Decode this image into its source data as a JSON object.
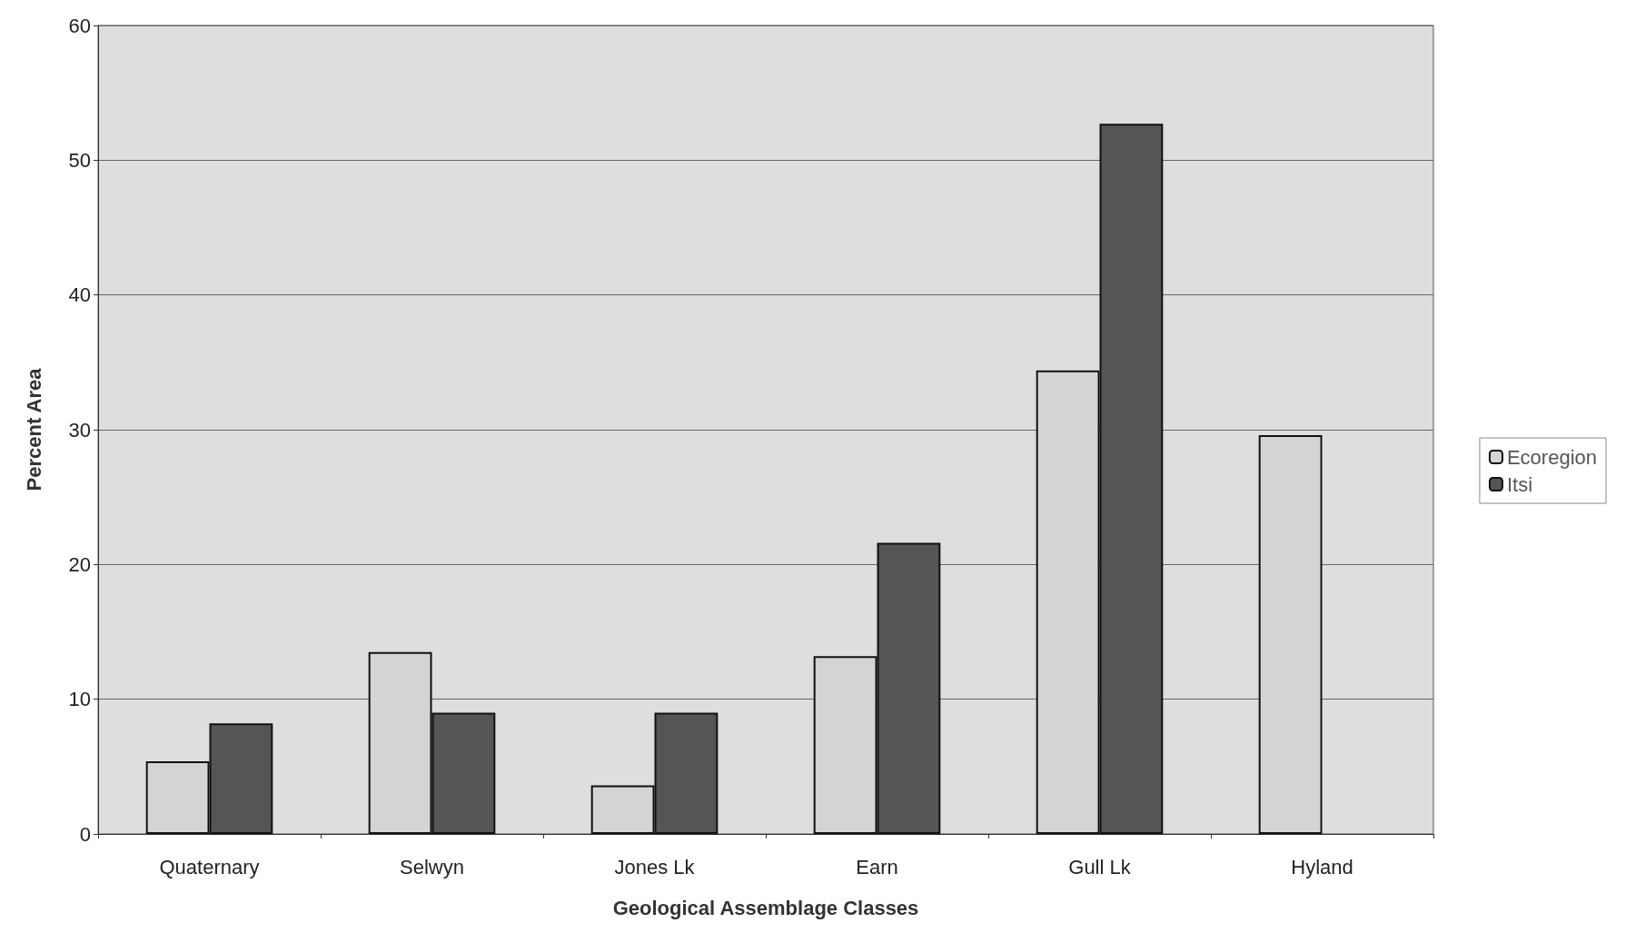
{
  "chart_data": {
    "type": "bar",
    "xlabel": "Geological Assemblage Classes",
    "ylabel": "Percent Area",
    "categories": [
      "Quaternary",
      "Selwyn",
      "Jones Lk",
      "Earn",
      "Gull Lk",
      "Hyland"
    ],
    "series": [
      {
        "name": "Ecoregion",
        "color": "#d4d4d4",
        "values": [
          5.4,
          13.5,
          3.6,
          13.2,
          34.4,
          29.6
        ]
      },
      {
        "name": "Itsi",
        "color": "#555555",
        "values": [
          8.2,
          9.0,
          9.0,
          21.6,
          52.7,
          null
        ]
      }
    ],
    "ylim": [
      0,
      60
    ],
    "yticks": [
      0,
      10,
      20,
      30,
      40,
      50,
      60
    ],
    "grid": "y",
    "legend": "right"
  }
}
